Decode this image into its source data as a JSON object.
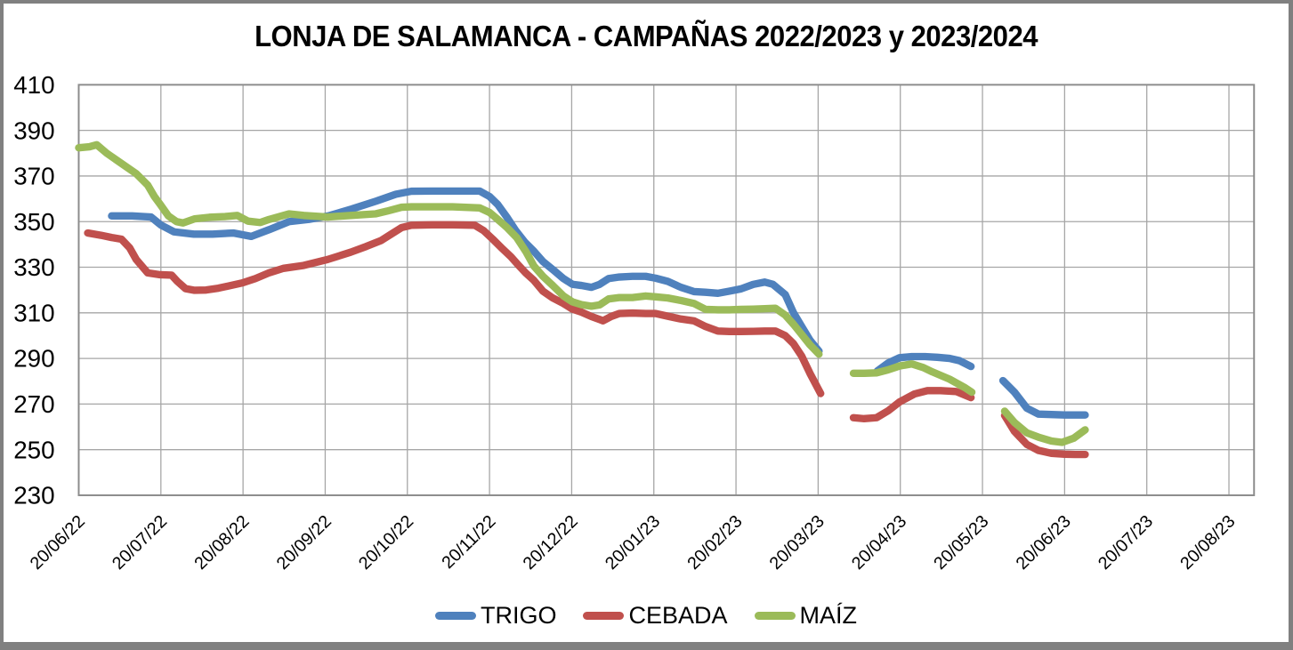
{
  "title": "LONJA DE SALAMANCA - CAMPAÑAS 2022/2023 y 2023/2024",
  "colors": {
    "trigo": "#4F81BD",
    "cebada": "#C0504D",
    "maiz": "#9BBB59",
    "gridline": "#A6A6A6",
    "plot_border": "#8C8C8C",
    "frame": "#808080",
    "text": "#000000"
  },
  "chart_data": {
    "type": "line",
    "title": "LONJA DE SALAMANCA - CAMPAÑAS 2022/2023 y 2023/2024",
    "x_axis": {
      "unit": "months since first tick (0 = 20/06/22, 1 tick = 1 month)",
      "tick_labels": [
        "20/06/22",
        "20/07/22",
        "20/08/22",
        "20/09/22",
        "20/10/22",
        "20/11/22",
        "20/12/22",
        "20/01/23",
        "20/02/23",
        "20/03/23",
        "20/04/23",
        "20/05/23",
        "20/06/23",
        "20/07/23",
        "20/08/23"
      ]
    },
    "y_axis": {
      "min": 230,
      "max": 410,
      "step": 20,
      "tick_labels": [
        "410",
        "390",
        "370",
        "350",
        "330",
        "310",
        "290",
        "270",
        "250",
        "230"
      ]
    },
    "grid": true,
    "legend_position": "bottom",
    "series": [
      {
        "id": "trigo",
        "name": "TRIGO",
        "color": "#4F81BD",
        "segments": [
          [
            [
              0.4,
              352.5
            ],
            [
              0.65,
              352.5
            ],
            [
              0.88,
              352
            ],
            [
              1.0,
              348.5
            ],
            [
              1.16,
              345.5
            ],
            [
              1.4,
              344.5
            ],
            [
              1.63,
              344.5
            ],
            [
              1.88,
              345
            ],
            [
              2.1,
              343.5
            ],
            [
              2.32,
              346.5
            ],
            [
              2.56,
              350
            ],
            [
              2.8,
              351
            ],
            [
              3.04,
              352.5
            ],
            [
              3.32,
              355.5
            ],
            [
              3.62,
              359
            ],
            [
              3.86,
              362
            ],
            [
              4.05,
              363.3
            ],
            [
              4.3,
              363.4
            ],
            [
              4.55,
              363.4
            ],
            [
              4.88,
              363.4
            ],
            [
              5.0,
              361
            ],
            [
              5.1,
              357.5
            ],
            [
              5.21,
              352
            ],
            [
              5.32,
              346
            ],
            [
              5.43,
              341
            ],
            [
              5.54,
              337
            ],
            [
              5.65,
              332.5
            ],
            [
              5.77,
              329
            ],
            [
              5.9,
              325
            ],
            [
              6.01,
              322.5
            ],
            [
              6.12,
              322
            ],
            [
              6.24,
              321.2
            ],
            [
              6.34,
              322.5
            ],
            [
              6.45,
              325
            ],
            [
              6.58,
              325.7
            ],
            [
              6.74,
              326
            ],
            [
              6.9,
              326
            ],
            [
              7.02,
              325.2
            ],
            [
              7.17,
              323.8
            ],
            [
              7.33,
              321.2
            ],
            [
              7.49,
              319.3
            ],
            [
              7.63,
              319
            ],
            [
              7.78,
              318.6
            ],
            [
              7.92,
              319.5
            ],
            [
              8.06,
              320.5
            ],
            [
              8.21,
              322.5
            ],
            [
              8.35,
              323.5
            ],
            [
              8.45,
              322.5
            ],
            [
              8.6,
              318
            ],
            [
              8.7,
              310
            ],
            [
              8.8,
              304
            ],
            [
              8.9,
              298
            ],
            [
              9.01,
              293.2
            ]
          ],
          [
            [
              9.72,
              284.5
            ],
            [
              9.85,
              288
            ],
            [
              9.99,
              290.3
            ],
            [
              10.14,
              290.8
            ],
            [
              10.3,
              290.8
            ],
            [
              10.45,
              290.5
            ],
            [
              10.6,
              290
            ],
            [
              10.72,
              289
            ],
            [
              10.86,
              286.5
            ]
          ],
          [
            [
              11.25,
              280.3
            ],
            [
              11.39,
              275.2
            ],
            [
              11.54,
              268.2
            ],
            [
              11.68,
              265.6
            ],
            [
              11.84,
              265.4
            ],
            [
              12.0,
              265.2
            ],
            [
              12.13,
              265.2
            ],
            [
              12.25,
              265.2
            ]
          ]
        ]
      },
      {
        "id": "cebada",
        "name": "CEBADA",
        "color": "#C0504D",
        "segments": [
          [
            [
              0.11,
              345
            ],
            [
              0.27,
              344
            ],
            [
              0.4,
              343
            ],
            [
              0.52,
              342.3
            ],
            [
              0.62,
              338.5
            ],
            [
              0.7,
              333.4
            ],
            [
              0.84,
              327.5
            ],
            [
              0.99,
              326.7
            ],
            [
              1.13,
              326.5
            ],
            [
              1.2,
              323.8
            ],
            [
              1.3,
              320.6
            ],
            [
              1.41,
              319.9
            ],
            [
              1.55,
              320
            ],
            [
              1.7,
              320.8
            ],
            [
              1.85,
              322
            ],
            [
              1.99,
              323.1
            ],
            [
              2.15,
              325
            ],
            [
              2.32,
              327.6
            ],
            [
              2.49,
              329.5
            ],
            [
              2.74,
              330.8
            ],
            [
              3.03,
              333.4
            ],
            [
              3.31,
              336.6
            ],
            [
              3.5,
              339.1
            ],
            [
              3.68,
              341.7
            ],
            [
              3.82,
              344.9
            ],
            [
              3.93,
              347.4
            ],
            [
              4.05,
              348.4
            ],
            [
              4.3,
              348.6
            ],
            [
              4.55,
              348.6
            ],
            [
              4.82,
              348.4
            ],
            [
              4.93,
              346
            ],
            [
              5.04,
              342.3
            ],
            [
              5.15,
              338.4
            ],
            [
              5.26,
              334.6
            ],
            [
              5.35,
              331
            ],
            [
              5.44,
              327.5
            ],
            [
              5.54,
              324.2
            ],
            [
              5.65,
              319.5
            ],
            [
              5.77,
              316.5
            ],
            [
              5.9,
              314.1
            ],
            [
              6.01,
              311.6
            ],
            [
              6.12,
              310.3
            ],
            [
              6.24,
              308.4
            ],
            [
              6.34,
              307.1
            ],
            [
              6.38,
              306.5
            ],
            [
              6.48,
              308.4
            ],
            [
              6.58,
              309.7
            ],
            [
              6.74,
              309.9
            ],
            [
              6.9,
              309.7
            ],
            [
              7.02,
              309.7
            ],
            [
              7.17,
              308.5
            ],
            [
              7.33,
              307.3
            ],
            [
              7.49,
              306.5
            ],
            [
              7.63,
              304
            ],
            [
              7.78,
              302
            ],
            [
              7.92,
              301.8
            ],
            [
              8.06,
              301.8
            ],
            [
              8.21,
              301.9
            ],
            [
              8.35,
              302
            ],
            [
              8.48,
              302
            ],
            [
              8.6,
              300
            ],
            [
              8.7,
              296.5
            ],
            [
              8.8,
              291
            ],
            [
              8.9,
              283.5
            ],
            [
              9.03,
              274.6
            ]
          ],
          [
            [
              9.43,
              264
            ],
            [
              9.56,
              263.6
            ],
            [
              9.71,
              264
            ],
            [
              9.85,
              267
            ],
            [
              9.99,
              270.9
            ],
            [
              10.17,
              274.4
            ],
            [
              10.33,
              275.9
            ],
            [
              10.49,
              275.9
            ],
            [
              10.68,
              275.5
            ],
            [
              10.86,
              272.8
            ]
          ],
          [
            [
              11.27,
              265
            ],
            [
              11.39,
              258
            ],
            [
              11.54,
              252.3
            ],
            [
              11.68,
              249.7
            ],
            [
              11.84,
              248.4
            ],
            [
              12.0,
              248
            ],
            [
              12.13,
              247.9
            ],
            [
              12.25,
              247.9
            ]
          ]
        ]
      },
      {
        "id": "maiz",
        "name": "MAÍZ",
        "color": "#9BBB59",
        "segments": [
          [
            [
              0.0,
              382.4
            ],
            [
              0.13,
              382.8
            ],
            [
              0.22,
              383.7
            ],
            [
              0.34,
              380
            ],
            [
              0.52,
              375.5
            ],
            [
              0.7,
              371
            ],
            [
              0.84,
              366
            ],
            [
              0.92,
              361
            ],
            [
              0.99,
              357.6
            ],
            [
              1.09,
              352.5
            ],
            [
              1.19,
              350
            ],
            [
              1.27,
              349.4
            ],
            [
              1.41,
              351.2
            ],
            [
              1.59,
              351.9
            ],
            [
              1.78,
              352.2
            ],
            [
              1.93,
              352.7
            ],
            [
              2.06,
              350.2
            ],
            [
              2.21,
              349.6
            ],
            [
              2.32,
              351
            ],
            [
              2.56,
              353.4
            ],
            [
              2.74,
              352.7
            ],
            [
              3.03,
              352
            ],
            [
              3.31,
              352.7
            ],
            [
              3.61,
              353.4
            ],
            [
              3.75,
              354.6
            ],
            [
              3.93,
              356.3
            ],
            [
              4.05,
              356.5
            ],
            [
              4.3,
              356.5
            ],
            [
              4.55,
              356.5
            ],
            [
              4.88,
              356
            ],
            [
              5.0,
              354
            ],
            [
              5.1,
              351
            ],
            [
              5.21,
              347.5
            ],
            [
              5.33,
              343
            ],
            [
              5.44,
              337
            ],
            [
              5.54,
              330.5
            ],
            [
              5.65,
              326
            ],
            [
              5.77,
              322
            ],
            [
              5.9,
              317.4
            ],
            [
              6.01,
              314.8
            ],
            [
              6.12,
              313.6
            ],
            [
              6.24,
              312.9
            ],
            [
              6.34,
              313.5
            ],
            [
              6.45,
              316.1
            ],
            [
              6.58,
              316.7
            ],
            [
              6.74,
              316.7
            ],
            [
              6.9,
              317.4
            ],
            [
              7.02,
              317
            ],
            [
              7.17,
              316.5
            ],
            [
              7.33,
              315.4
            ],
            [
              7.49,
              314.1
            ],
            [
              7.63,
              311.5
            ],
            [
              7.78,
              311.3
            ],
            [
              7.92,
              311.3
            ],
            [
              8.06,
              311.5
            ],
            [
              8.21,
              311.6
            ],
            [
              8.35,
              311.8
            ],
            [
              8.48,
              312
            ],
            [
              8.6,
              309
            ],
            [
              8.7,
              305
            ],
            [
              8.8,
              300.5
            ],
            [
              8.9,
              296
            ],
            [
              9.01,
              291.9
            ]
          ],
          [
            [
              9.43,
              283.5
            ],
            [
              9.56,
              283.5
            ],
            [
              9.71,
              283.7
            ],
            [
              9.85,
              285
            ],
            [
              9.99,
              286.7
            ],
            [
              10.14,
              287.6
            ],
            [
              10.28,
              286
            ],
            [
              10.39,
              284.1
            ],
            [
              10.6,
              280.9
            ],
            [
              10.79,
              277.1
            ],
            [
              10.87,
              275.2
            ]
          ],
          [
            [
              11.27,
              266.9
            ],
            [
              11.39,
              261.9
            ],
            [
              11.54,
              257.4
            ],
            [
              11.68,
              255.5
            ],
            [
              11.84,
              253.8
            ],
            [
              11.97,
              253.2
            ],
            [
              12.11,
              255
            ],
            [
              12.25,
              258.7
            ]
          ]
        ]
      }
    ]
  }
}
